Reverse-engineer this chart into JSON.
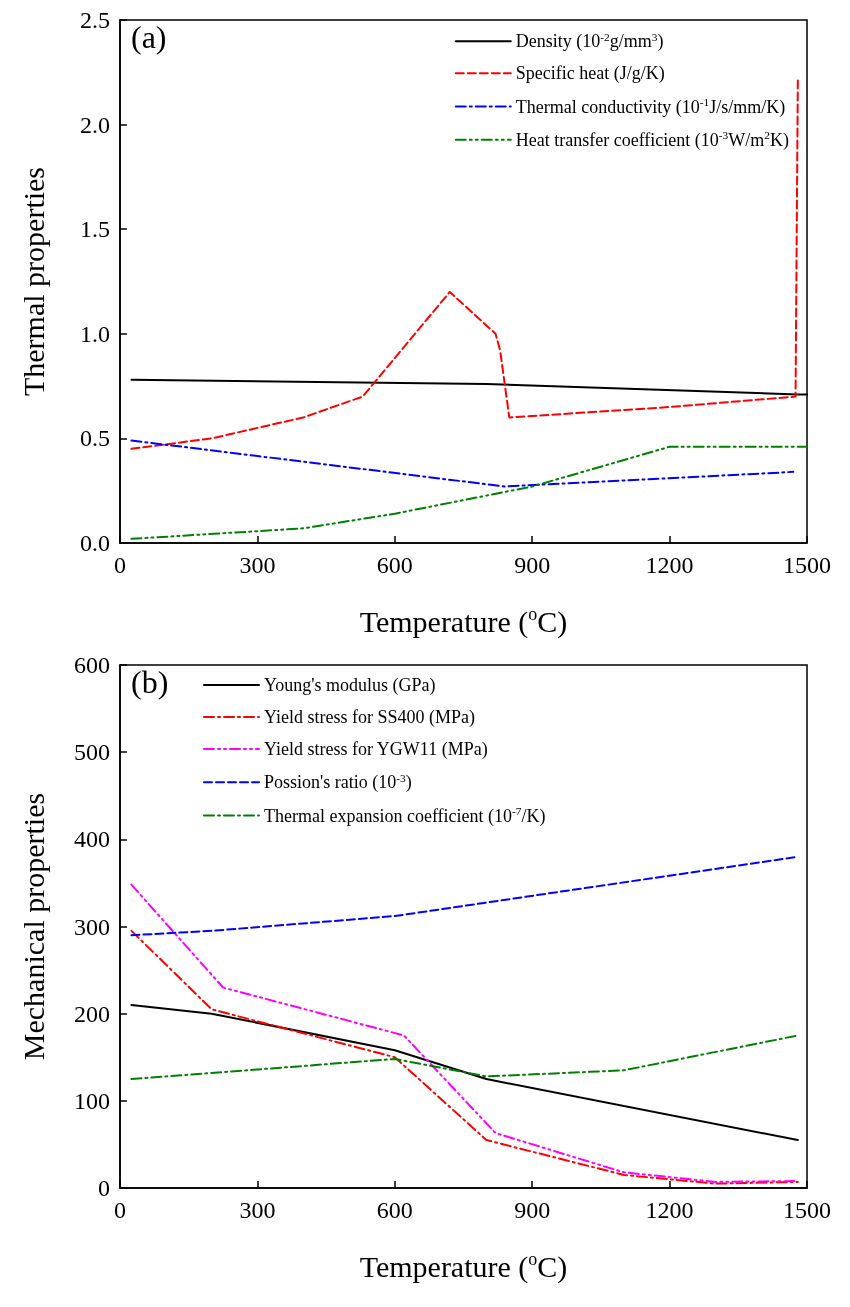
{
  "chart_data": [
    {
      "type": "line",
      "title": "(a)",
      "xlabel": "Temperature ($^{o}$C)",
      "ylabel": "Thermal properties",
      "xlim": [
        0,
        1500
      ],
      "xticks": [
        0,
        300,
        600,
        900,
        1200,
        1500
      ],
      "ylim": [
        0,
        2.5
      ],
      "yticks": [
        {
          "value": 0,
          "label": "0.0"
        },
        {
          "value": 0.5,
          "label": "0.5"
        },
        {
          "value": 1,
          "label": "1.0"
        },
        {
          "value": 1.5,
          "label": "1.5"
        },
        {
          "value": 2,
          "label": "2.0"
        },
        {
          "value": 2.5,
          "label": "2.5"
        }
      ],
      "legend": "top right",
      "grid": false,
      "marker": "none",
      "series": [
        {
          "name": "Density (10$^{-2}$g/mm$^{3}$)",
          "color": "#000000",
          "line_style": "solid",
          "x": [
            25,
            800,
            1480,
            1500
          ],
          "values": [
            0.78,
            0.76,
            0.71,
            0.71
          ]
        },
        {
          "name": "Specific heat (J/g/K)",
          "color": "#ff0000",
          "line_style": "dashed",
          "x": [
            25,
            200,
            400,
            530,
            720,
            820,
            830,
            850,
            1200,
            1475,
            1480
          ],
          "values": [
            0.45,
            0.5,
            0.6,
            0.7,
            1.2,
            1.0,
            0.92,
            0.6,
            0.65,
            0.7,
            2.22
          ]
        },
        {
          "name": "Thermal conductivity (10$^{-1}$J/s/mm/K)",
          "color": "#0000ff",
          "line_style": "dashdot",
          "x": [
            25,
            840,
            1470
          ],
          "values": [
            0.49,
            0.27,
            0.34
          ]
        },
        {
          "name": "Heat transfer coefficient (10$^{-3}$W/m$^{2}$K)",
          "color": "#008000",
          "line_style": "dashdotdot",
          "x": [
            25,
            400,
            600,
            900,
            1200,
            1500
          ],
          "values": [
            0.02,
            0.07,
            0.14,
            0.27,
            0.46,
            0.46
          ]
        }
      ]
    },
    {
      "type": "line",
      "title": "(b)",
      "xlabel": "Temperature ($^{o}$C)",
      "ylabel": "Mechanical properties",
      "xlim": [
        0,
        1500
      ],
      "xticks": [
        0,
        300,
        600,
        900,
        1200,
        1500
      ],
      "ylim": [
        0,
        600
      ],
      "yticks": [
        0,
        100,
        200,
        300,
        400,
        500,
        600
      ],
      "legend": "top left",
      "grid": false,
      "marker": "none",
      "series": [
        {
          "name": "Young's modulus (GPa)",
          "color": "#000000",
          "line_style": "solid",
          "x": [
            25,
            200,
            600,
            800,
            1480
          ],
          "values": [
            210,
            200,
            158,
            125,
            55
          ]
        },
        {
          "name": "Yield stress for SS400 (MPa)",
          "color": "#ff0000",
          "line_style": "dashdot",
          "x": [
            25,
            200,
            600,
            800,
            1100,
            1300,
            1480
          ],
          "values": [
            295,
            205,
            150,
            55,
            15,
            5,
            7
          ]
        },
        {
          "name": "Yield stress for YGW11 (MPa)",
          "color": "#ff00ff",
          "line_style": "dashdotdot",
          "x": [
            25,
            225,
            620,
            820,
            1100,
            1300,
            1480
          ],
          "values": [
            348,
            230,
            175,
            63,
            18,
            7,
            8
          ]
        },
        {
          "name": "Possion's ratio (10$^{-3}$)",
          "color": "#0000ff",
          "line_style": "dashed",
          "x": [
            25,
            200,
            600,
            1480
          ],
          "values": [
            290,
            295,
            312,
            380
          ]
        },
        {
          "name": "Thermal expansion coefficient (10$^{-7}$/K)",
          "color": "#008000",
          "line_style": "dashdot",
          "x": [
            25,
            600,
            800,
            1100,
            1480
          ],
          "values": [
            125,
            148,
            128,
            135,
            175
          ]
        }
      ]
    }
  ]
}
